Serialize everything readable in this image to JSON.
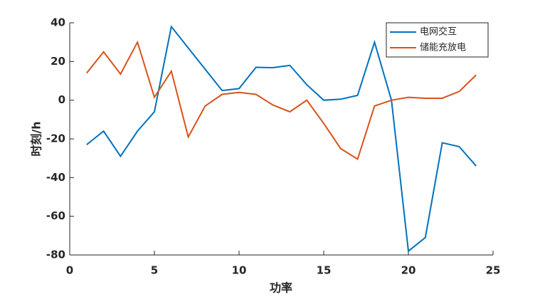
{
  "chart_data": {
    "type": "line",
    "x_label": "功率",
    "y_label": "时刻/h",
    "x": [
      1,
      2,
      3,
      4,
      5,
      6,
      7,
      8,
      9,
      10,
      11,
      12,
      13,
      14,
      15,
      16,
      17,
      18,
      19,
      20,
      21,
      22,
      23,
      24
    ],
    "series": [
      {
        "name": "电网交互",
        "color": "#0072bd",
        "values": [
          -23,
          -16,
          -29,
          -16,
          -6,
          38,
          27,
          16,
          5,
          6,
          17,
          16.8,
          18,
          8,
          0,
          0.5,
          2.5,
          30,
          0,
          -78,
          -71,
          -22,
          -24,
          -34
        ]
      },
      {
        "name": "储能充放电",
        "color": "#d95319",
        "values": [
          14,
          25,
          13.5,
          30,
          1.5,
          15,
          -19,
          -3,
          3,
          4,
          3,
          -2.5,
          -6,
          0,
          -12,
          -25,
          -30.5,
          -3,
          0,
          1.5,
          1,
          1,
          4.5,
          13
        ]
      }
    ],
    "xlim": [
      0,
      25
    ],
    "xticks": [
      0,
      5,
      10,
      15,
      20,
      25
    ],
    "ylim": [
      -80,
      40
    ],
    "yticks": [
      -80,
      -60,
      -40,
      -20,
      0,
      20,
      40
    ],
    "legend": "upper right"
  }
}
